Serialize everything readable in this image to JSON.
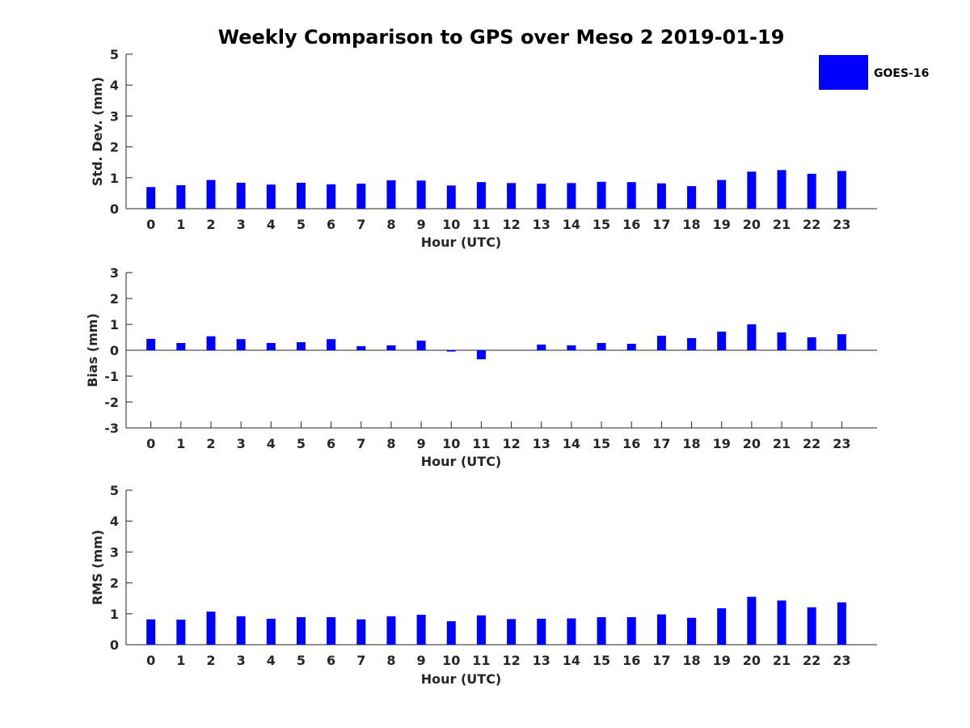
{
  "title": "Weekly Comparison to GPS over Meso 2 2019-01-19",
  "legend": {
    "label": "GOES-16",
    "color": "#0000ff"
  },
  "bar_color": "#0000ff",
  "chart_data": [
    {
      "type": "bar",
      "title": "Weekly Comparison to GPS over Meso 2 2019-01-19",
      "xlabel": "Hour (UTC)",
      "ylabel": "Std. Dev. (mm)",
      "ylim": [
        0,
        5
      ],
      "yticks": [
        0,
        1,
        2,
        3,
        4,
        5
      ],
      "categories": [
        "0",
        "1",
        "2",
        "3",
        "4",
        "5",
        "6",
        "7",
        "8",
        "9",
        "10",
        "11",
        "12",
        "13",
        "14",
        "15",
        "16",
        "17",
        "18",
        "19",
        "20",
        "21",
        "22",
        "23"
      ],
      "series": [
        {
          "name": "GOES-16",
          "values": [
            0.7,
            0.76,
            0.93,
            0.84,
            0.78,
            0.84,
            0.79,
            0.81,
            0.92,
            0.91,
            0.75,
            0.86,
            0.83,
            0.81,
            0.83,
            0.87,
            0.86,
            0.82,
            0.73,
            0.93,
            1.2,
            1.25,
            1.13,
            1.22
          ]
        }
      ]
    },
    {
      "type": "bar",
      "xlabel": "Hour (UTC)",
      "ylabel": "Bias (mm)",
      "ylim": [
        -3,
        3
      ],
      "yticks": [
        -3,
        -2,
        -1,
        0,
        1,
        2,
        3
      ],
      "categories": [
        "0",
        "1",
        "2",
        "3",
        "4",
        "5",
        "6",
        "7",
        "8",
        "9",
        "10",
        "11",
        "12",
        "13",
        "14",
        "15",
        "16",
        "17",
        "18",
        "19",
        "20",
        "21",
        "22",
        "23"
      ],
      "series": [
        {
          "name": "GOES-16",
          "values": [
            0.44,
            0.28,
            0.54,
            0.43,
            0.28,
            0.31,
            0.43,
            0.16,
            0.19,
            0.37,
            -0.05,
            -0.35,
            0.0,
            0.22,
            0.19,
            0.28,
            0.25,
            0.56,
            0.47,
            0.72,
            1.0,
            0.69,
            0.5,
            0.62
          ]
        }
      ]
    },
    {
      "type": "bar",
      "xlabel": "Hour (UTC)",
      "ylabel": "RMS (mm)",
      "ylim": [
        0,
        5
      ],
      "yticks": [
        0,
        1,
        2,
        3,
        4,
        5
      ],
      "categories": [
        "0",
        "1",
        "2",
        "3",
        "4",
        "5",
        "6",
        "7",
        "8",
        "9",
        "10",
        "11",
        "12",
        "13",
        "14",
        "15",
        "16",
        "17",
        "18",
        "19",
        "20",
        "21",
        "22",
        "23"
      ],
      "series": [
        {
          "name": "GOES-16",
          "values": [
            0.82,
            0.81,
            1.07,
            0.92,
            0.84,
            0.89,
            0.89,
            0.82,
            0.92,
            0.97,
            0.76,
            0.95,
            0.83,
            0.84,
            0.85,
            0.89,
            0.89,
            0.98,
            0.87,
            1.18,
            1.55,
            1.43,
            1.21,
            1.37
          ]
        }
      ]
    }
  ]
}
